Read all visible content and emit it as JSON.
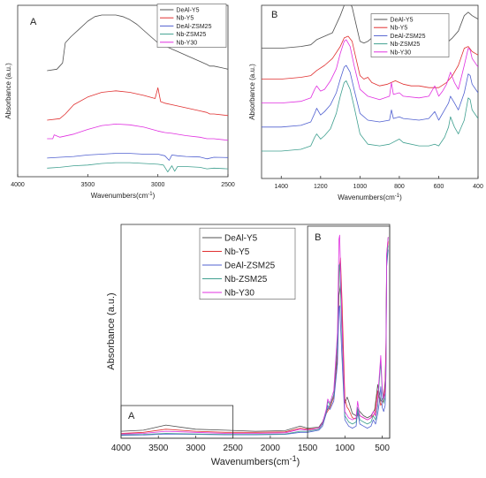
{
  "chart_data": [
    {
      "type": "line",
      "panel_label": "A",
      "xlabel": "Wavenumbers(cm",
      "xlabel_sup": "-1",
      "xlabel_tail": ")",
      "ylabel": "Absorbance (a.u.)",
      "xlim": [
        4000,
        2500
      ],
      "xticks": [
        4000,
        3500,
        3000,
        2500
      ],
      "ylim": [
        0,
        10
      ],
      "legend_position": "top-right",
      "series": [
        {
          "name": "DeAl-Y5",
          "color": "#505050",
          "x": [
            3790,
            3720,
            3680,
            3660,
            3620,
            3560,
            3500,
            3450,
            3400,
            3350,
            3300,
            3250,
            3200,
            3150,
            3100,
            3050,
            3000,
            2950,
            2900,
            2850,
            2800,
            2750,
            2700,
            2650,
            2630,
            2600,
            2550,
            2500
          ],
          "y": [
            6.4,
            6.5,
            6.9,
            8.2,
            8.6,
            9.1,
            9.6,
            9.9,
            10.0,
            10.0,
            10.0,
            9.9,
            9.7,
            9.4,
            9.0,
            8.6,
            8.2,
            8.0,
            7.8,
            7.6,
            7.4,
            7.2,
            7.0,
            6.8,
            6.7,
            6.7,
            6.6,
            6.5
          ]
        },
        {
          "name": "Nb-Y5",
          "color": "#e03030",
          "x": [
            3790,
            3700,
            3660,
            3600,
            3500,
            3400,
            3300,
            3200,
            3100,
            3020,
            3000,
            2980,
            2950,
            2900,
            2800,
            2700,
            2650,
            2630,
            2600,
            2500
          ],
          "y": [
            3.2,
            3.3,
            3.6,
            4.2,
            4.7,
            5.0,
            5.1,
            5.0,
            4.8,
            4.6,
            5.3,
            4.4,
            4.3,
            4.2,
            4.0,
            3.8,
            3.7,
            3.6,
            3.6,
            3.5
          ]
        },
        {
          "name": "DeAl-ZSM25",
          "color": "#5060d0",
          "x": [
            3790,
            3700,
            3600,
            3500,
            3400,
            3300,
            3200,
            3100,
            3000,
            2950,
            2920,
            2900,
            2860,
            2800,
            2700,
            2650,
            2600,
            2500
          ],
          "y": [
            0.75,
            0.8,
            0.85,
            0.95,
            1.0,
            1.05,
            1.05,
            1.0,
            1.0,
            0.9,
            0.6,
            0.95,
            0.9,
            0.85,
            0.82,
            0.7,
            0.8,
            0.78
          ]
        },
        {
          "name": "Nb-ZSM25",
          "color": "#40a090",
          "x": [
            3790,
            3700,
            3600,
            3500,
            3400,
            3300,
            3200,
            3100,
            3000,
            2960,
            2930,
            2900,
            2880,
            2860,
            2800,
            2700,
            2650,
            2600,
            2500
          ],
          "y": [
            0.1,
            0.15,
            0.25,
            0.3,
            0.4,
            0.45,
            0.45,
            0.4,
            0.35,
            0.3,
            -0.15,
            0.25,
            -0.1,
            0.2,
            0.2,
            0.15,
            0.05,
            0.1,
            0.05
          ]
        },
        {
          "name": "Nb-Y30",
          "color": "#e030e0",
          "x": [
            3790,
            3750,
            3740,
            3700,
            3600,
            3500,
            3400,
            3300,
            3200,
            3100,
            3000,
            2950,
            2900,
            2800,
            2700,
            2650,
            2600,
            2500
          ],
          "y": [
            2.0,
            2.0,
            2.25,
            2.1,
            2.3,
            2.6,
            2.85,
            2.95,
            2.9,
            2.75,
            2.5,
            2.4,
            2.35,
            2.2,
            2.1,
            2.0,
            2.0,
            1.9
          ]
        }
      ]
    },
    {
      "type": "line",
      "panel_label": "B",
      "xlabel": "Wavenumbers(cm",
      "xlabel_sup": "-1",
      "xlabel_tail": ")",
      "ylabel": "Absorbance (a.u.)",
      "xlim": [
        1500,
        400
      ],
      "xticks": [
        1400,
        1200,
        1000,
        800,
        600,
        400
      ],
      "ylim": [
        0,
        10
      ],
      "legend_position": "top-right",
      "series": [
        {
          "name": "DeAl-Y5",
          "color": "#505050",
          "x": [
            1500,
            1400,
            1300,
            1250,
            1220,
            1180,
            1140,
            1100,
            1080,
            1060,
            1040,
            1020,
            1000,
            980,
            960,
            930,
            900,
            860,
            820,
            800,
            780,
            740,
            700,
            650,
            600,
            560,
            530,
            500,
            470,
            450,
            430,
            400
          ],
          "y": [
            7.6,
            7.6,
            7.7,
            7.8,
            8.1,
            8.3,
            8.5,
            9.5,
            10.1,
            10.4,
            10.0,
            9.0,
            8.0,
            7.9,
            8.0,
            8.3,
            8.0,
            7.8,
            8.0,
            8.1,
            7.9,
            7.7,
            7.6,
            7.5,
            7.5,
            7.9,
            8.2,
            8.6,
            9.5,
            9.7,
            9.5,
            9.3
          ]
        },
        {
          "name": "Nb-Y5",
          "color": "#e03030",
          "x": [
            1500,
            1400,
            1300,
            1250,
            1220,
            1180,
            1140,
            1100,
            1080,
            1060,
            1040,
            1020,
            1000,
            980,
            960,
            940,
            900,
            860,
            820,
            800,
            780,
            740,
            700,
            650,
            600,
            560,
            530,
            500,
            470,
            450,
            430,
            400
          ],
          "y": [
            5.8,
            5.8,
            5.9,
            6.0,
            6.3,
            6.6,
            7.0,
            7.7,
            8.2,
            8.3,
            8.0,
            7.0,
            6.0,
            5.8,
            5.9,
            5.6,
            5.4,
            5.5,
            5.7,
            5.6,
            5.5,
            5.4,
            5.4,
            5.3,
            5.3,
            5.6,
            6.0,
            6.6,
            7.6,
            7.7,
            7.4,
            7.2
          ]
        },
        {
          "name": "DeAl-ZSM25",
          "color": "#5060d0",
          "x": [
            1500,
            1400,
            1300,
            1250,
            1230,
            1220,
            1200,
            1180,
            1150,
            1120,
            1100,
            1080,
            1070,
            1050,
            1030,
            1000,
            960,
            900,
            850,
            840,
            830,
            800,
            780,
            700,
            650,
            620,
            600,
            570,
            550,
            540,
            520,
            500,
            470,
            450,
            440,
            430,
            400
          ],
          "y": [
            3.0,
            3.0,
            3.1,
            3.3,
            3.8,
            4.1,
            3.7,
            3.9,
            4.3,
            5.0,
            5.8,
            6.5,
            6.6,
            6.2,
            5.2,
            3.8,
            3.4,
            3.3,
            3.4,
            4.0,
            3.5,
            3.6,
            3.5,
            3.4,
            3.5,
            3.9,
            3.4,
            4.0,
            4.4,
            4.8,
            4.4,
            4.0,
            5.0,
            6.1,
            6.0,
            5.5,
            5.0
          ]
        },
        {
          "name": "Nb-ZSM25",
          "color": "#40a090",
          "x": [
            1500,
            1400,
            1300,
            1250,
            1230,
            1220,
            1200,
            1180,
            1150,
            1120,
            1100,
            1080,
            1070,
            1050,
            1030,
            1000,
            960,
            900,
            850,
            800,
            780,
            700,
            650,
            620,
            600,
            570,
            550,
            540,
            520,
            500,
            470,
            450,
            440,
            430,
            400
          ],
          "y": [
            1.6,
            1.6,
            1.7,
            1.9,
            2.4,
            2.6,
            2.3,
            2.5,
            2.9,
            3.8,
            4.8,
            5.6,
            5.7,
            5.2,
            4.2,
            2.6,
            2.0,
            1.9,
            2.0,
            2.3,
            2.1,
            1.9,
            1.9,
            2.0,
            1.9,
            2.4,
            3.0,
            3.6,
            3.0,
            2.6,
            3.4,
            4.7,
            4.6,
            4.0,
            3.5
          ]
        },
        {
          "name": "Nb-Y30",
          "color": "#e030e0",
          "x": [
            1500,
            1400,
            1300,
            1250,
            1230,
            1220,
            1200,
            1180,
            1150,
            1120,
            1100,
            1080,
            1070,
            1050,
            1030,
            1000,
            960,
            900,
            850,
            840,
            830,
            800,
            780,
            700,
            650,
            620,
            600,
            580,
            560,
            540,
            520,
            500,
            470,
            450,
            440,
            430,
            400
          ],
          "y": [
            4.4,
            4.4,
            4.5,
            4.7,
            5.2,
            5.4,
            5.1,
            5.2,
            5.7,
            6.4,
            7.3,
            8.0,
            8.1,
            7.7,
            6.6,
            5.2,
            4.8,
            4.6,
            4.8,
            5.6,
            4.9,
            5.0,
            4.8,
            4.7,
            4.8,
            5.4,
            4.8,
            5.1,
            5.5,
            6.2,
            5.6,
            5.2,
            6.6,
            7.6,
            7.5,
            7.0,
            6.5
          ]
        }
      ]
    },
    {
      "type": "line",
      "xlabel": "Wavenumbers(cm",
      "xlabel_sup": "-1",
      "xlabel_tail": ")",
      "ylabel": "Absorbance (a.u.)",
      "xlim": [
        4000,
        400
      ],
      "xticks": [
        4000,
        3500,
        3000,
        2500,
        2000,
        1500,
        1000,
        500
      ],
      "ylim": [
        0,
        10
      ],
      "legend_position": "top-left",
      "region_labels": [
        "A",
        "B"
      ],
      "series": [
        {
          "name": "DeAl-Y5",
          "color": "#505050",
          "x": [
            4000,
            3700,
            3400,
            3000,
            2600,
            2200,
            1800,
            1600,
            1500,
            1350,
            1300,
            1250,
            1200,
            1150,
            1100,
            1080,
            1060,
            1040,
            1000,
            970,
            950,
            900,
            850,
            820,
            800,
            750,
            700,
            650,
            600,
            560,
            520,
            480,
            460,
            450,
            440,
            420
          ],
          "y": [
            0.25,
            0.3,
            0.55,
            0.35,
            0.3,
            0.25,
            0.28,
            0.5,
            0.4,
            0.45,
            0.7,
            1.2,
            1.5,
            2.0,
            3.8,
            6.8,
            7.3,
            5.6,
            1.6,
            1.9,
            1.7,
            1.1,
            1.0,
            1.3,
            1.2,
            1.0,
            0.9,
            1.0,
            1.3,
            2.5,
            1.7,
            1.9,
            2.7,
            4.5,
            8.7,
            9.6
          ]
        },
        {
          "name": "Nb-Y5",
          "color": "#e03030",
          "x": [
            4000,
            3700,
            3400,
            3000,
            2600,
            2200,
            1800,
            1600,
            1500,
            1350,
            1300,
            1250,
            1200,
            1150,
            1100,
            1080,
            1060,
            1040,
            1000,
            970,
            950,
            900,
            850,
            820,
            800,
            750,
            700,
            650,
            600,
            560,
            520,
            480,
            460,
            450,
            440,
            420
          ],
          "y": [
            0.15,
            0.2,
            0.35,
            0.25,
            0.2,
            0.2,
            0.22,
            0.4,
            0.35,
            0.4,
            0.6,
            1.1,
            1.4,
            1.9,
            4.1,
            7.9,
            8.6,
            6.6,
            1.8,
            1.4,
            1.3,
            0.9,
            0.85,
            1.1,
            1.0,
            0.9,
            0.8,
            0.9,
            1.1,
            2.2,
            1.5,
            1.8,
            2.5,
            4.2,
            8.5,
            9.4
          ]
        },
        {
          "name": "DeAl-ZSM25",
          "color": "#5060d0",
          "x": [
            4000,
            3700,
            3400,
            3000,
            2600,
            2200,
            1800,
            1600,
            1500,
            1350,
            1300,
            1250,
            1230,
            1200,
            1150,
            1100,
            1080,
            1070,
            1040,
            1000,
            950,
            900,
            850,
            830,
            800,
            750,
            700,
            650,
            620,
            590,
            560,
            540,
            520,
            500,
            480,
            460,
            450,
            440,
            420
          ],
          "y": [
            0.05,
            0.07,
            0.12,
            0.1,
            0.08,
            0.08,
            0.1,
            0.2,
            0.2,
            0.3,
            0.5,
            1.1,
            1.5,
            1.3,
            1.7,
            3.5,
            6.2,
            6.3,
            3.8,
            0.8,
            0.5,
            0.4,
            0.5,
            1.2,
            0.6,
            0.5,
            0.4,
            0.5,
            0.8,
            0.6,
            1.1,
            1.6,
            2.4,
            1.4,
            1.2,
            1.5,
            3.0,
            8.2,
            9.0
          ]
        },
        {
          "name": "Nb-ZSM25",
          "color": "#40a090",
          "x": [
            4000,
            3700,
            3400,
            3000,
            2600,
            2200,
            1800,
            1600,
            1500,
            1350,
            1300,
            1250,
            1230,
            1200,
            1150,
            1100,
            1080,
            1070,
            1040,
            1000,
            950,
            900,
            850,
            830,
            800,
            750,
            700,
            650,
            620,
            590,
            560,
            540,
            520,
            500,
            480,
            460,
            450,
            440,
            420
          ],
          "y": [
            0.08,
            0.1,
            0.15,
            0.12,
            0.1,
            0.1,
            0.12,
            0.25,
            0.25,
            0.35,
            0.6,
            1.2,
            1.7,
            1.5,
            2.0,
            4.5,
            8.2,
            8.3,
            4.8,
            1.0,
            0.7,
            0.6,
            0.7,
            1.4,
            0.8,
            0.7,
            0.6,
            0.7,
            1.0,
            0.8,
            1.5,
            2.6,
            3.6,
            2.1,
            1.6,
            1.9,
            3.4,
            8.5,
            9.2
          ]
        },
        {
          "name": "Nb-Y30",
          "color": "#e030e0",
          "x": [
            4000,
            3700,
            3400,
            3000,
            2600,
            2200,
            1800,
            1600,
            1500,
            1350,
            1300,
            1250,
            1230,
            1200,
            1150,
            1100,
            1080,
            1070,
            1040,
            1000,
            950,
            900,
            850,
            830,
            800,
            750,
            700,
            650,
            620,
            590,
            560,
            540,
            520,
            500,
            480,
            460,
            450,
            440,
            420
          ],
          "y": [
            0.12,
            0.15,
            0.25,
            0.2,
            0.15,
            0.15,
            0.18,
            0.35,
            0.3,
            0.4,
            0.65,
            1.3,
            1.8,
            1.6,
            2.2,
            5.0,
            9.5,
            9.7,
            5.5,
            1.2,
            0.9,
            0.8,
            0.9,
            1.7,
            1.0,
            0.9,
            0.8,
            0.9,
            1.2,
            1.0,
            1.8,
            2.9,
            3.9,
            2.3,
            1.8,
            2.1,
            3.7,
            8.8,
            9.6
          ]
        }
      ]
    }
  ]
}
